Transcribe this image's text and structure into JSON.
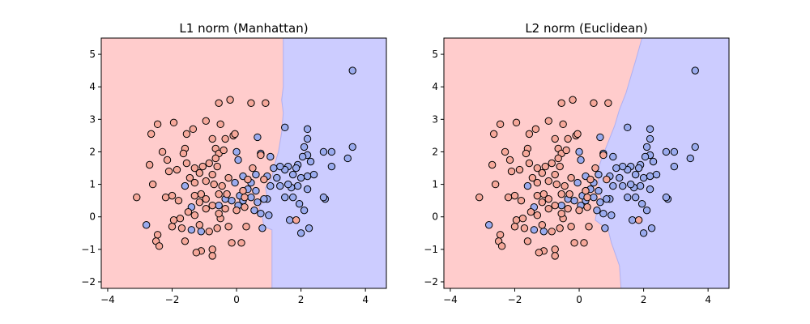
{
  "chart_data": [
    {
      "type": "scatter",
      "title": "L1 norm (Manhattan)",
      "xlabel": "",
      "ylabel": "",
      "xlim": [
        -4.2,
        4.65
      ],
      "ylim": [
        -2.2,
        5.5
      ],
      "xticks": [
        -4,
        -2,
        0,
        2,
        4
      ],
      "yticks": [
        -2,
        -1,
        0,
        1,
        2,
        3,
        4,
        5
      ],
      "grid": false,
      "region_colors": {
        "class_0": "#ffcccc",
        "class_1": "#ccccff"
      },
      "point_colors": {
        "class_0": "#f6a89a",
        "class_1": "#9aabee"
      },
      "boundary": [
        [
          -2.2,
          1.1
        ],
        [
          -0.4,
          1.1
        ],
        [
          -0.3,
          0.85
        ],
        [
          0.0,
          0.8
        ],
        [
          0.3,
          0.7
        ],
        [
          0.6,
          0.95
        ],
        [
          0.9,
          0.9
        ],
        [
          1.2,
          1.1
        ],
        [
          1.5,
          1.15
        ],
        [
          2.0,
          1.3
        ],
        [
          2.6,
          1.4
        ],
        [
          3.2,
          1.45
        ],
        [
          3.6,
          1.4
        ],
        [
          4.0,
          1.45
        ],
        [
          4.5,
          1.45
        ],
        [
          5.0,
          1.45
        ],
        [
          5.5,
          1.45
        ]
      ],
      "points": [
        {
          "x": 3.6,
          "y": 4.5,
          "c": 1
        },
        {
          "x": 3.6,
          "y": 2.15,
          "c": 1
        },
        {
          "x": 3.45,
          "y": 1.8,
          "c": 1
        },
        {
          "x": 2.95,
          "y": 1.55,
          "c": 1
        },
        {
          "x": 2.95,
          "y": 2.0,
          "c": 1
        },
        {
          "x": 2.7,
          "y": 2.0,
          "c": 1
        },
        {
          "x": 2.75,
          "y": 0.55,
          "c": 1
        },
        {
          "x": 2.2,
          "y": 2.7,
          "c": 1
        },
        {
          "x": 2.2,
          "y": 2.4,
          "c": 1
        },
        {
          "x": 2.1,
          "y": 2.15,
          "c": 1
        },
        {
          "x": 2.2,
          "y": 1.9,
          "c": 1
        },
        {
          "x": 2.05,
          "y": 1.85,
          "c": 1
        },
        {
          "x": 1.9,
          "y": 1.6,
          "c": 1
        },
        {
          "x": 2.3,
          "y": 1.7,
          "c": 1
        },
        {
          "x": 2.2,
          "y": 1.25,
          "c": 1
        },
        {
          "x": 2.0,
          "y": 1.2,
          "c": 1
        },
        {
          "x": 1.75,
          "y": 1.3,
          "c": 1
        },
        {
          "x": 2.4,
          "y": 1.3,
          "c": 1
        },
        {
          "x": 1.9,
          "y": 0.95,
          "c": 1
        },
        {
          "x": 2.2,
          "y": 0.85,
          "c": 1
        },
        {
          "x": 1.7,
          "y": 0.9,
          "c": 1
        },
        {
          "x": 1.6,
          "y": 1.55,
          "c": 1
        },
        {
          "x": 1.5,
          "y": 1.45,
          "c": 1
        },
        {
          "x": 1.35,
          "y": 1.55,
          "c": 1
        },
        {
          "x": 1.5,
          "y": 2.75,
          "c": 1
        },
        {
          "x": 1.75,
          "y": 0.6,
          "c": 1
        },
        {
          "x": 1.95,
          "y": 0.4,
          "c": 1
        },
        {
          "x": 2.1,
          "y": 0.2,
          "c": 1
        },
        {
          "x": 2.0,
          "y": -0.5,
          "c": 1
        },
        {
          "x": 2.25,
          "y": -0.35,
          "c": 1
        },
        {
          "x": 1.65,
          "y": -0.1,
          "c": 1
        },
        {
          "x": 1.5,
          "y": 0.6,
          "c": 1
        },
        {
          "x": 1.35,
          "y": 0.95,
          "c": 1
        },
        {
          "x": 1.25,
          "y": 1.2,
          "c": 1
        },
        {
          "x": 1.15,
          "y": 1.5,
          "c": 1
        },
        {
          "x": 1.05,
          "y": 1.85,
          "c": 1
        },
        {
          "x": 0.95,
          "y": 1.25,
          "c": 1
        },
        {
          "x": 0.95,
          "y": 0.55,
          "c": 1
        },
        {
          "x": 1.05,
          "y": 0.95,
          "c": 1
        },
        {
          "x": 0.85,
          "y": 0.55,
          "c": 1
        },
        {
          "x": 0.75,
          "y": 1.95,
          "c": 1
        },
        {
          "x": 0.6,
          "y": 1.3,
          "c": 1
        },
        {
          "x": 0.6,
          "y": 0.8,
          "c": 1
        },
        {
          "x": 0.65,
          "y": 0.45,
          "c": 1
        },
        {
          "x": 0.55,
          "y": 0.2,
          "c": 1
        },
        {
          "x": 0.45,
          "y": 1.05,
          "c": 1
        },
        {
          "x": 0.45,
          "y": 0.6,
          "c": 1
        },
        {
          "x": 0.35,
          "y": 0.85,
          "c": 1
        },
        {
          "x": 0.2,
          "y": 1.25,
          "c": 1
        },
        {
          "x": 0.2,
          "y": 0.5,
          "c": 1
        },
        {
          "x": 0.05,
          "y": 1.75,
          "c": 1
        },
        {
          "x": 0.05,
          "y": 0.35,
          "c": 1
        },
        {
          "x": -0.05,
          "y": 1.05,
          "c": 1
        },
        {
          "x": -0.15,
          "y": 0.5,
          "c": 1
        },
        {
          "x": 0.0,
          "y": 2.0,
          "c": 1
        },
        {
          "x": -0.35,
          "y": 0.55,
          "c": 1
        },
        {
          "x": 0.65,
          "y": 2.45,
          "c": 1
        },
        {
          "x": 0.75,
          "y": 0.1,
          "c": 1
        },
        {
          "x": 0.8,
          "y": -0.35,
          "c": 1
        },
        {
          "x": 2.7,
          "y": 0.6,
          "c": 1
        },
        {
          "x": 1.0,
          "y": 0.05,
          "c": 1
        },
        {
          "x": 1.6,
          "y": 1.0,
          "c": 1
        },
        {
          "x": 1.85,
          "y": 1.5,
          "c": 1
        },
        {
          "x": -0.55,
          "y": 0.35,
          "c": 1
        },
        {
          "x": -1.6,
          "y": 0.95,
          "c": 1
        },
        {
          "x": -1.4,
          "y": -0.4,
          "c": 1
        },
        {
          "x": -1.1,
          "y": -0.45,
          "c": 1
        },
        {
          "x": -2.8,
          "y": -0.25,
          "c": 1
        },
        {
          "x": -1.4,
          "y": 0.3,
          "c": 1
        },
        {
          "x": 0.1,
          "y": 0.65,
          "c": 1
        },
        {
          "x": -3.1,
          "y": 0.6,
          "c": 0
        },
        {
          "x": -2.65,
          "y": 2.55,
          "c": 0
        },
        {
          "x": -2.45,
          "y": 2.85,
          "c": 0
        },
        {
          "x": -1.95,
          "y": 2.9,
          "c": 0
        },
        {
          "x": -1.55,
          "y": 2.55,
          "c": 0
        },
        {
          "x": -1.35,
          "y": 2.7,
          "c": 0
        },
        {
          "x": -0.95,
          "y": 2.95,
          "c": 0
        },
        {
          "x": -0.55,
          "y": 3.5,
          "c": 0
        },
        {
          "x": -0.2,
          "y": 3.6,
          "c": 0
        },
        {
          "x": 0.45,
          "y": 3.5,
          "c": 0
        },
        {
          "x": 0.9,
          "y": 3.5,
          "c": 0
        },
        {
          "x": -0.5,
          "y": 2.85,
          "c": 0
        },
        {
          "x": -0.35,
          "y": 2.4,
          "c": 0
        },
        {
          "x": -0.1,
          "y": 2.5,
          "c": 0
        },
        {
          "x": -0.05,
          "y": 2.55,
          "c": 0
        },
        {
          "x": -0.75,
          "y": 2.4,
          "c": 0
        },
        {
          "x": -0.65,
          "y": 2.1,
          "c": 0
        },
        {
          "x": -0.55,
          "y": 1.95,
          "c": 0
        },
        {
          "x": -0.4,
          "y": 2.05,
          "c": 0
        },
        {
          "x": -1.6,
          "y": 2.1,
          "c": 0
        },
        {
          "x": -1.65,
          "y": 1.95,
          "c": 0
        },
        {
          "x": -2.3,
          "y": 2.0,
          "c": 0
        },
        {
          "x": -2.15,
          "y": 1.75,
          "c": 0
        },
        {
          "x": -2.7,
          "y": 1.6,
          "c": 0
        },
        {
          "x": -2.1,
          "y": 1.4,
          "c": 0
        },
        {
          "x": -1.85,
          "y": 1.45,
          "c": 0
        },
        {
          "x": -1.55,
          "y": 1.65,
          "c": 0
        },
        {
          "x": -1.3,
          "y": 1.5,
          "c": 0
        },
        {
          "x": -1.05,
          "y": 1.55,
          "c": 0
        },
        {
          "x": -0.85,
          "y": 1.65,
          "c": 0
        },
        {
          "x": -0.65,
          "y": 1.8,
          "c": 0
        },
        {
          "x": -0.6,
          "y": 1.55,
          "c": 0
        },
        {
          "x": -0.75,
          "y": 1.3,
          "c": 0
        },
        {
          "x": -0.95,
          "y": 1.1,
          "c": 0
        },
        {
          "x": -1.45,
          "y": 1.2,
          "c": 0
        },
        {
          "x": -1.3,
          "y": 1.05,
          "c": 0
        },
        {
          "x": -1.15,
          "y": 1.35,
          "c": 0
        },
        {
          "x": -0.7,
          "y": 1.0,
          "c": 0
        },
        {
          "x": -0.45,
          "y": 0.95,
          "c": 0
        },
        {
          "x": -0.25,
          "y": 1.2,
          "c": 0
        },
        {
          "x": -2.6,
          "y": 1.0,
          "c": 0
        },
        {
          "x": -2.2,
          "y": 0.6,
          "c": 0
        },
        {
          "x": -2.0,
          "y": 0.65,
          "c": 0
        },
        {
          "x": -1.8,
          "y": 0.5,
          "c": 0
        },
        {
          "x": -1.3,
          "y": 0.65,
          "c": 0
        },
        {
          "x": -1.1,
          "y": 0.7,
          "c": 0
        },
        {
          "x": -1.15,
          "y": 0.45,
          "c": 0
        },
        {
          "x": -0.95,
          "y": 0.55,
          "c": 0
        },
        {
          "x": -0.55,
          "y": 0.7,
          "c": 0
        },
        {
          "x": -0.3,
          "y": 0.7,
          "c": 0
        },
        {
          "x": 0.2,
          "y": 0.8,
          "c": 0
        },
        {
          "x": 0.25,
          "y": 0.6,
          "c": 0
        },
        {
          "x": 0.25,
          "y": 0.3,
          "c": 0
        },
        {
          "x": 0.75,
          "y": 1.9,
          "c": 0
        },
        {
          "x": 0.5,
          "y": 1.5,
          "c": 0
        },
        {
          "x": 0.35,
          "y": 1.15,
          "c": 0
        },
        {
          "x": -1.95,
          "y": -0.1,
          "c": 0
        },
        {
          "x": -1.75,
          "y": -0.05,
          "c": 0
        },
        {
          "x": -1.7,
          "y": -0.35,
          "c": 0
        },
        {
          "x": -2.0,
          "y": -0.3,
          "c": 0
        },
        {
          "x": -2.45,
          "y": -0.55,
          "c": 0
        },
        {
          "x": -2.5,
          "y": -0.75,
          "c": 0
        },
        {
          "x": -2.4,
          "y": -0.9,
          "c": 0
        },
        {
          "x": -1.6,
          "y": -0.75,
          "c": 0
        },
        {
          "x": -1.15,
          "y": -0.25,
          "c": 0
        },
        {
          "x": -1.1,
          "y": -1.05,
          "c": 0
        },
        {
          "x": -1.25,
          "y": -1.1,
          "c": 0
        },
        {
          "x": -0.75,
          "y": -1.0,
          "c": 0
        },
        {
          "x": -0.75,
          "y": -1.2,
          "c": 0
        },
        {
          "x": -0.85,
          "y": -0.45,
          "c": 0
        },
        {
          "x": -0.6,
          "y": -0.35,
          "c": 0
        },
        {
          "x": -0.5,
          "y": -0.05,
          "c": 0
        },
        {
          "x": -0.55,
          "y": 0.1,
          "c": 0
        },
        {
          "x": -0.25,
          "y": -0.3,
          "c": 0
        },
        {
          "x": -0.15,
          "y": -0.8,
          "c": 0
        },
        {
          "x": 0.15,
          "y": -0.8,
          "c": 0
        },
        {
          "x": 0.3,
          "y": -0.3,
          "c": 0
        },
        {
          "x": -0.95,
          "y": 0.25,
          "c": 0
        },
        {
          "x": -0.75,
          "y": 0.35,
          "c": 0
        },
        {
          "x": -1.3,
          "y": 0.05,
          "c": 0
        },
        {
          "x": -1.5,
          "y": 0.15,
          "c": 0
        },
        {
          "x": -0.35,
          "y": 0.25,
          "c": 0
        },
        {
          "x": 0.0,
          "y": 0.2,
          "c": 0
        },
        {
          "x": 0.85,
          "y": 1.15,
          "c": 0
        },
        {
          "x": 1.85,
          "y": -0.1,
          "c": 0
        }
      ]
    },
    {
      "type": "scatter",
      "title": "L2 norm (Euclidean)",
      "xlabel": "",
      "ylabel": "",
      "xlim": [
        -4.2,
        4.65
      ],
      "ylim": [
        -2.2,
        5.5
      ],
      "xticks": [
        -4,
        -2,
        0,
        2,
        4
      ],
      "yticks": [
        -2,
        -1,
        0,
        1,
        2,
        3,
        4,
        5
      ],
      "grid": false,
      "region_colors": {
        "class_0": "#ffcccc",
        "class_1": "#ccccff"
      },
      "point_colors": {
        "class_0": "#f6a89a",
        "class_1": "#9aabee"
      },
      "boundary": [
        [
          -2.2,
          1.3
        ],
        [
          -1.5,
          1.25
        ],
        [
          -0.8,
          1.0
        ],
        [
          -0.4,
          0.9
        ],
        [
          -0.1,
          0.5
        ],
        [
          0.2,
          0.55
        ],
        [
          0.5,
          0.7
        ],
        [
          1.0,
          0.6
        ],
        [
          1.5,
          0.6
        ],
        [
          1.8,
          0.7
        ],
        [
          2.3,
          0.9
        ],
        [
          2.8,
          1.1
        ],
        [
          3.3,
          1.25
        ],
        [
          3.8,
          1.45
        ],
        [
          4.3,
          1.6
        ],
        [
          4.8,
          1.75
        ],
        [
          5.5,
          1.95
        ]
      ],
      "points": "same as first panel"
    }
  ]
}
